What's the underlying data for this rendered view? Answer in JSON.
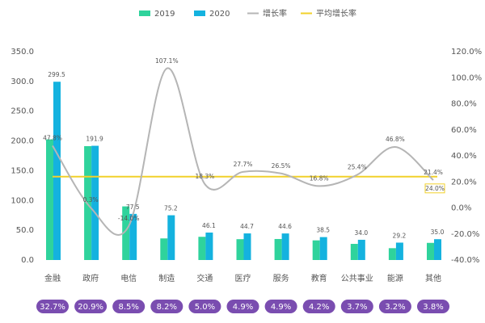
{
  "chart_data": {
    "type": "bar_line",
    "categories": [
      "金融",
      "政府",
      "电信",
      "制造",
      "交通",
      "医疗",
      "服务",
      "教育",
      "公共事业",
      "能源",
      "其他"
    ],
    "series": [
      {
        "name": "2019",
        "color": "#2fd39c",
        "values": [
          202.6,
          191.3,
          90.1,
          36.3,
          39.0,
          35.0,
          35.3,
          33.0,
          27.1,
          19.9,
          28.8
        ]
      },
      {
        "name": "2020",
        "color": "#14b2df",
        "values": [
          299.5,
          191.9,
          77.5,
          75.2,
          46.1,
          44.7,
          44.6,
          38.5,
          34.0,
          29.2,
          35.0
        ],
        "value_labels": [
          "299.5",
          "191.9",
          "77.5",
          "75.2",
          "46.1",
          "44.7",
          "44.6",
          "38.5",
          "34.0",
          "29.2",
          "35.0"
        ]
      },
      {
        "name": "增长率",
        "color": "#b5b5b5",
        "axis": "y2",
        "values": [
          47.8,
          0.3,
          -14.0,
          107.1,
          18.3,
          27.7,
          26.5,
          16.8,
          25.4,
          46.8,
          21.4
        ],
        "value_labels": [
          "47.8%",
          "0.3%",
          "-14.0%",
          "107.1%",
          "18.3%",
          "27.7%",
          "26.5%",
          "16.8%",
          "25.4%",
          "46.8%",
          "21.4%"
        ]
      }
    ],
    "average": {
      "name": "平均增长率",
      "color": "#f2d12a",
      "value": 24.0,
      "value_label": "24.0%"
    },
    "shares": {
      "color": "#7a4db0",
      "values": [
        32.7,
        20.9,
        8.5,
        8.2,
        5.0,
        4.9,
        4.9,
        4.2,
        3.7,
        3.2,
        3.8
      ],
      "value_labels": [
        "32.7%",
        "20.9%",
        "8.5%",
        "8.2%",
        "5.0%",
        "4.9%",
        "4.9%",
        "4.2%",
        "3.7%",
        "3.2%",
        "3.8%"
      ]
    },
    "ylim": [
      0,
      350
    ],
    "yticks": [
      {
        "value": 0,
        "label": "0.0"
      },
      {
        "value": 50,
        "label": "50.0"
      },
      {
        "value": 100,
        "label": "100.0"
      },
      {
        "value": 150,
        "label": "150.0"
      },
      {
        "value": 200,
        "label": "200.0"
      },
      {
        "value": 250,
        "label": "250.0"
      },
      {
        "value": 300,
        "label": "300.0"
      },
      {
        "value": 350,
        "label": "350.0"
      }
    ],
    "y2lim": [
      -40,
      120
    ],
    "y2ticks": [
      {
        "value": -40,
        "label": "-40.0%"
      },
      {
        "value": -20,
        "label": "-20.0%"
      },
      {
        "value": 0,
        "label": "0.0%"
      },
      {
        "value": 20,
        "label": "20.0%"
      },
      {
        "value": 40,
        "label": "40.0%"
      },
      {
        "value": 60,
        "label": "60.0%"
      },
      {
        "value": 80,
        "label": "80.0%"
      },
      {
        "value": 100,
        "label": "100.0%"
      },
      {
        "value": 120,
        "label": "120.0%"
      }
    ]
  }
}
